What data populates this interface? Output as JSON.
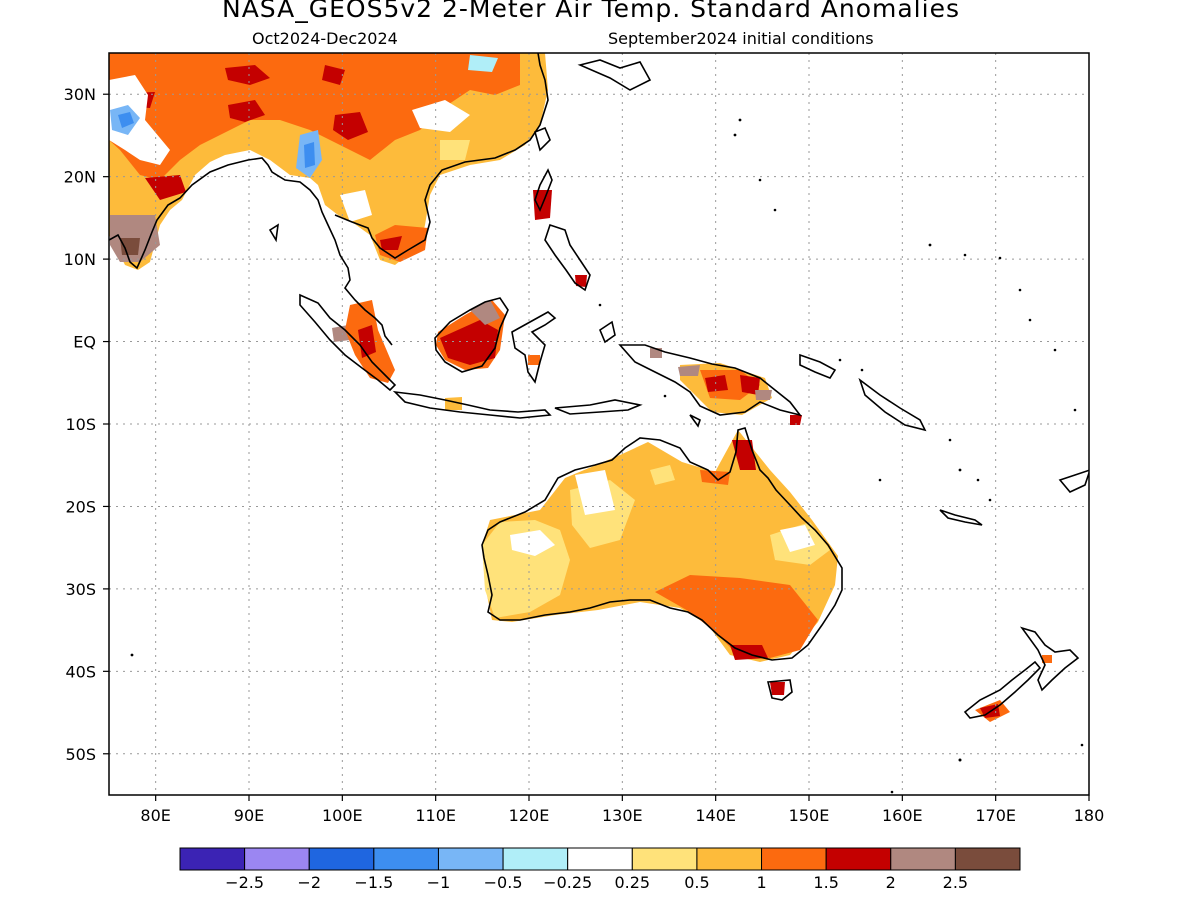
{
  "title": "NASA_GEOS5v2 2-Meter Air Temp. Standard Anomalies",
  "period": "Oct2024-Dec2024",
  "init": "September2024 initial conditions",
  "axes": {
    "lat_labels": [
      "30N",
      "20N",
      "10N",
      "EQ",
      "10S",
      "20S",
      "30S",
      "40S",
      "50S"
    ],
    "lat_values": [
      30,
      20,
      10,
      0,
      -10,
      -20,
      -30,
      -40,
      -50
    ],
    "lon_labels": [
      "80E",
      "90E",
      "100E",
      "110E",
      "120E",
      "130E",
      "140E",
      "150E",
      "160E",
      "170E",
      "180"
    ],
    "lon_values": [
      80,
      90,
      100,
      110,
      120,
      130,
      140,
      150,
      160,
      170,
      180
    ],
    "lon_range": [
      75,
      180
    ],
    "lat_range": [
      -55,
      35
    ]
  },
  "colorbar": {
    "colors": [
      "#3b23b4",
      "#9b86f2",
      "#1f66e0",
      "#3d8ef0",
      "#78b6f6",
      "#b0eef8",
      "#ffffff",
      "#ffe27a",
      "#fdbb3b",
      "#fc6a0f",
      "#c40000",
      "#b08880",
      "#7a4c3c"
    ],
    "labels": [
      "−2.5",
      "−2",
      "−1.5",
      "−1",
      "−0.5",
      "−0.25",
      "0.25",
      "0.5",
      "1",
      "1.5",
      "2",
      "2.5"
    ]
  }
}
